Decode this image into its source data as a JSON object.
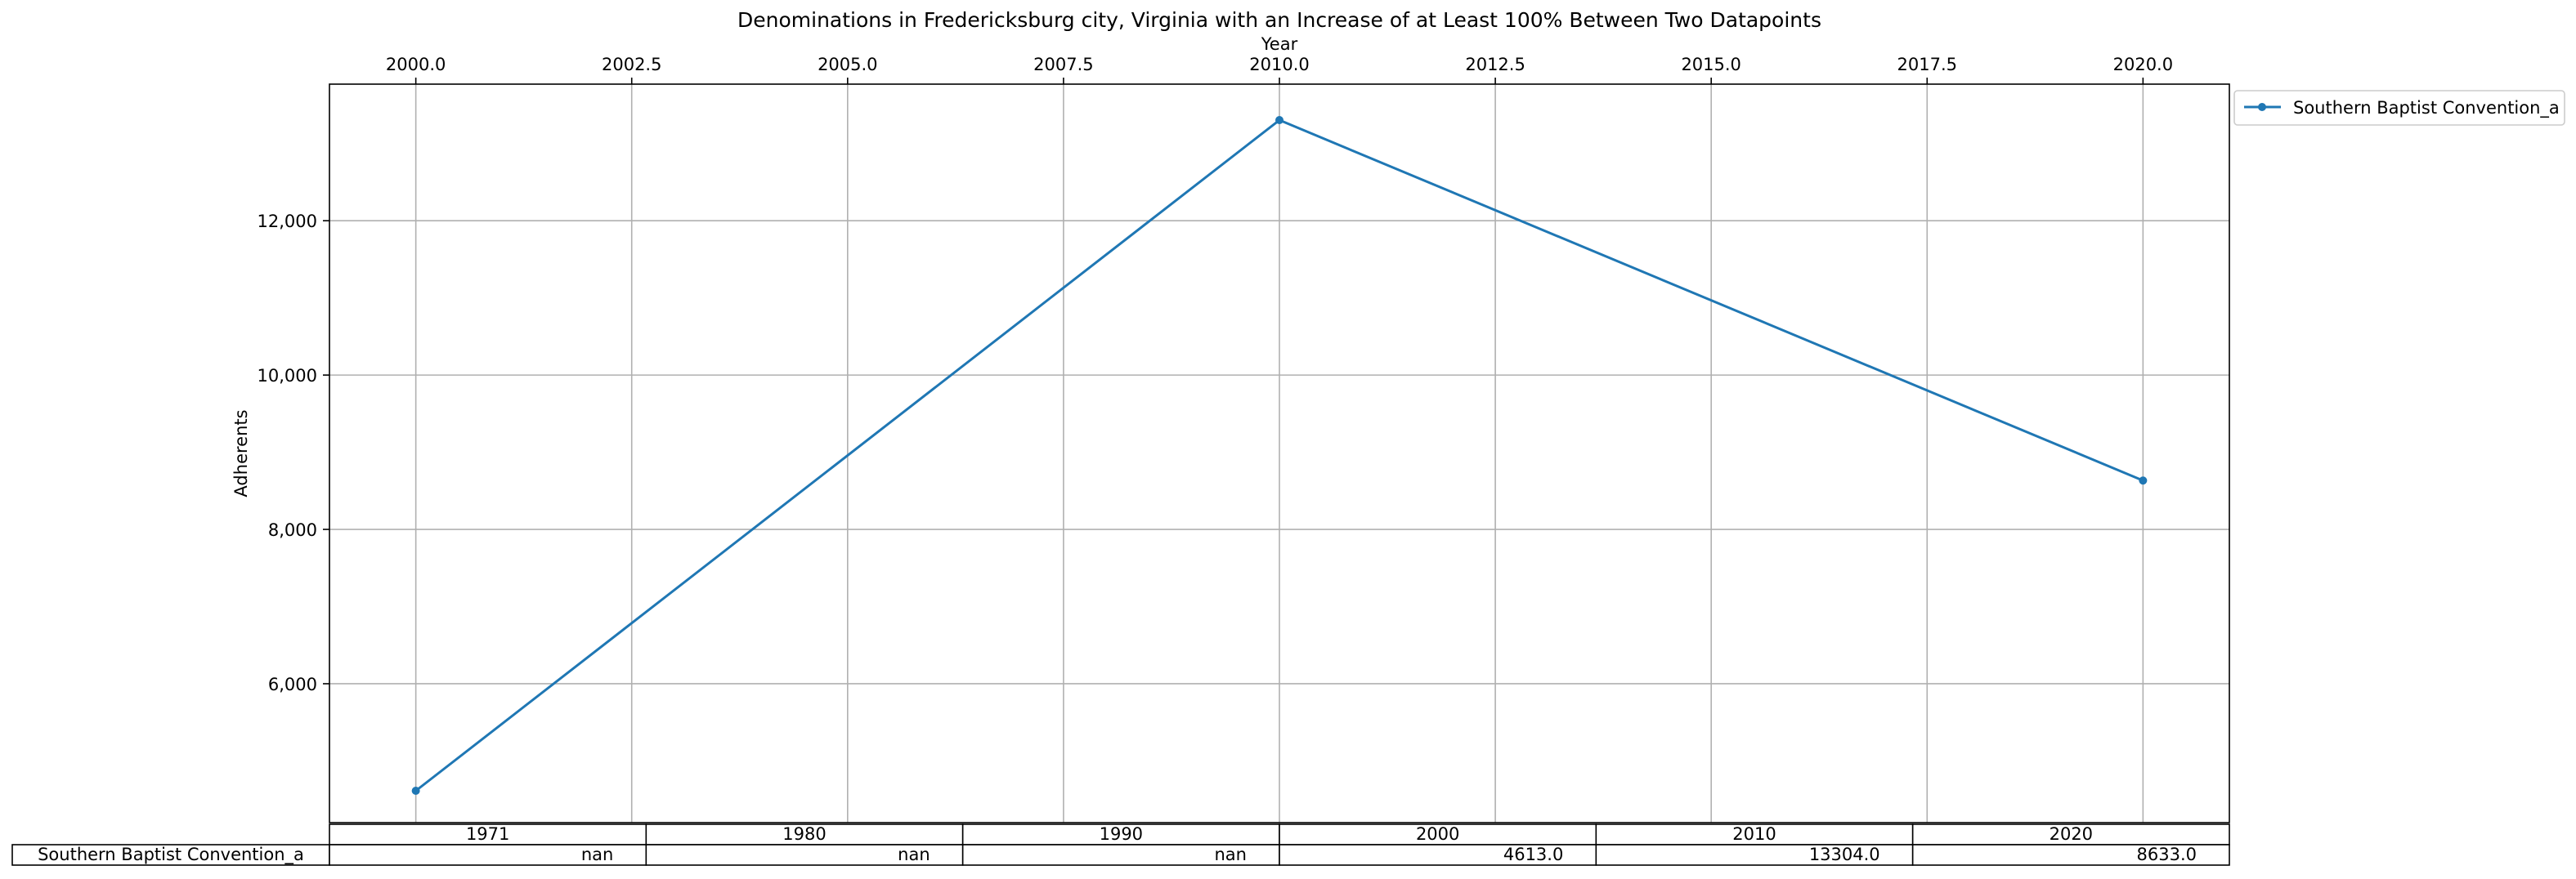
{
  "chart_data": {
    "type": "line",
    "title": "Denominations in Fredericksburg city, Virginia with an Increase of at Least 100% Between Two Datapoints",
    "xlabel": "Year",
    "ylabel": "Adherents",
    "x": [
      2000,
      2010,
      2020
    ],
    "series": [
      {
        "name": "Southern Baptist Convention_a",
        "values": [
          4613,
          13304,
          8633
        ],
        "color": "#1f77b4"
      }
    ],
    "xlim": [
      1999.0,
      2021.0
    ],
    "ylim": [
      4200,
      13770
    ],
    "xticks": [
      2000.0,
      2002.5,
      2005.0,
      2007.5,
      2010.0,
      2012.5,
      2015.0,
      2017.5,
      2020.0
    ],
    "xtick_labels": [
      "2000.0",
      "2002.5",
      "2005.0",
      "2007.5",
      "2010.0",
      "2012.5",
      "2015.0",
      "2017.5",
      "2020.0"
    ],
    "yticks": [
      6000,
      8000,
      10000,
      12000
    ],
    "ytick_labels": [
      "6,000",
      "8,000",
      "10,000",
      "12,000"
    ],
    "x_axis_position": "top",
    "grid": true,
    "legend_placement": "outside-top-right",
    "table": {
      "columns": [
        "1971",
        "1980",
        "1990",
        "2000",
        "2010",
        "2020"
      ],
      "rows": [
        {
          "label": "Southern Baptist Convention_a",
          "cells": [
            "nan",
            "nan",
            "nan",
            "4613.0",
            "13304.0",
            "8633.0"
          ]
        }
      ]
    }
  }
}
